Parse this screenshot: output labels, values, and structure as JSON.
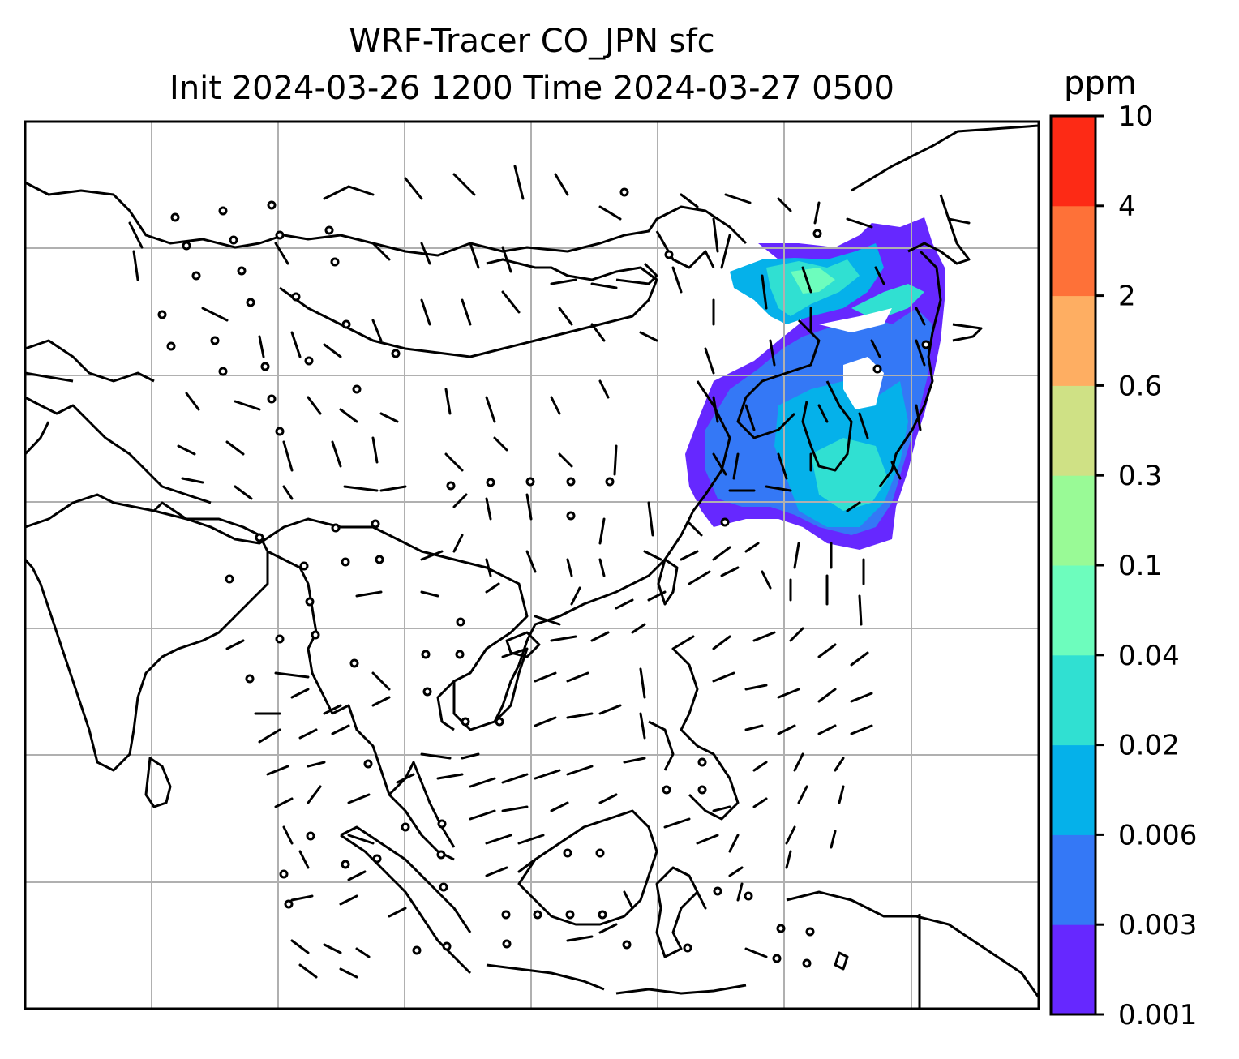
{
  "title": {
    "line1": "WRF-Tracer CO_JPN sfc",
    "line2": "Init 2024-03-26 1200 Time 2024-03-27 0500"
  },
  "colorbar": {
    "unit": "ppm",
    "levels": [
      "0.001",
      "0.003",
      "0.006",
      "0.02",
      "0.04",
      "0.1",
      "0.3",
      "0.6",
      "2",
      "4",
      "10"
    ],
    "colors": [
      "#6628ff",
      "#3478f6",
      "#05b1ea",
      "#30e0d2",
      "#6dfdbd",
      "#99fa96",
      "#cfe185",
      "#feae62",
      "#fe7138",
      "#fd2a15"
    ]
  },
  "map": {
    "gridlines": true,
    "grid_color": "#b0b0b0",
    "features": [
      "coastlines",
      "country-borders",
      "wind-barbs",
      "calm-circles",
      "tracer-plume"
    ]
  }
}
